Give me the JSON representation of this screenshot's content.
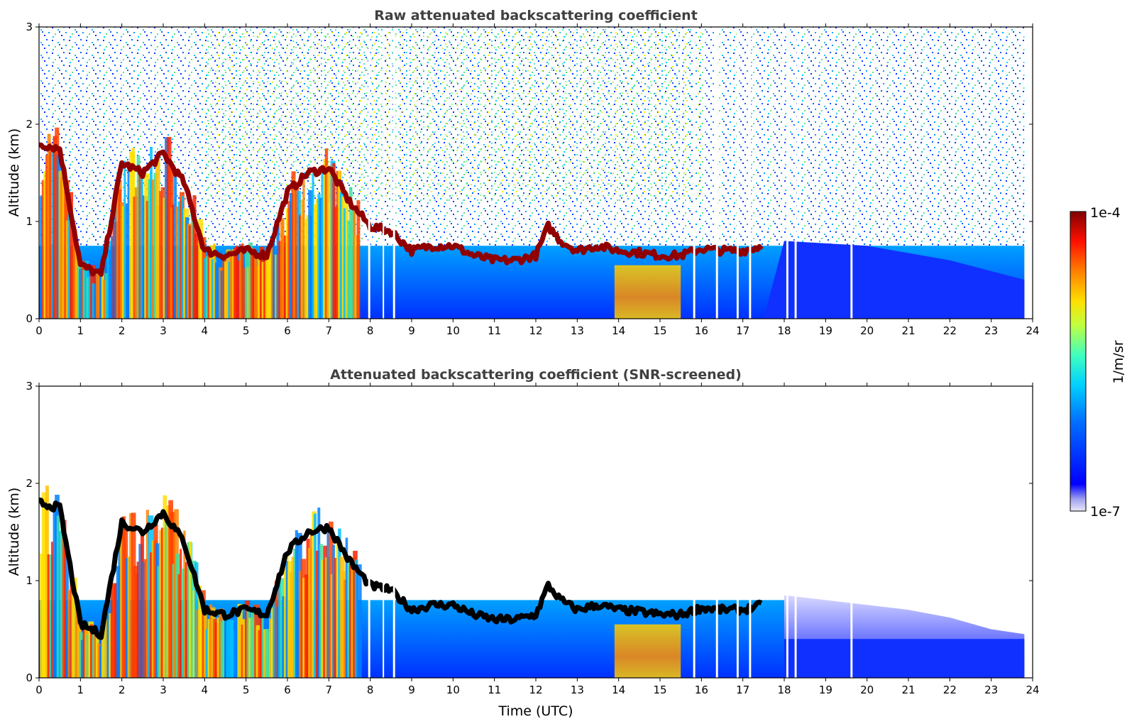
{
  "chart_data": [
    {
      "type": "heatmap",
      "title": "Raw attenuated backscattering coefficient",
      "xlabel": "",
      "ylabel": "Altitude (km)",
      "xlim": [
        0,
        24
      ],
      "ylim": [
        0,
        3
      ],
      "x_ticks": [
        "0",
        "1",
        "2",
        "3",
        "4",
        "5",
        "6",
        "7",
        "8",
        "9",
        "10",
        "11",
        "12",
        "13",
        "14",
        "15",
        "16",
        "17",
        "18",
        "19",
        "20",
        "21",
        "22",
        "23",
        "24"
      ],
      "y_ticks": [
        "0",
        "1",
        "2",
        "3"
      ],
      "data_end_hour": 23.8,
      "data_gaps_hours": [
        [
          7.95,
          8.0
        ],
        [
          8.3,
          8.33
        ],
        [
          8.55,
          8.6
        ],
        [
          15.8,
          15.85
        ],
        [
          16.35,
          16.4
        ],
        [
          16.85,
          16.9
        ],
        [
          17.15,
          17.2
        ],
        [
          18.05,
          18.1
        ],
        [
          18.25,
          18.3
        ],
        [
          19.6,
          19.65
        ]
      ],
      "boundary_layer_top_km": [
        {
          "x": 0,
          "y": 1.8
        },
        {
          "x": 0.5,
          "y": 1.75
        },
        {
          "x": 1,
          "y": 0.55
        },
        {
          "x": 1.5,
          "y": 0.45
        },
        {
          "x": 2,
          "y": 1.6
        },
        {
          "x": 2.5,
          "y": 1.5
        },
        {
          "x": 3,
          "y": 1.7
        },
        {
          "x": 3.5,
          "y": 1.4
        },
        {
          "x": 4,
          "y": 0.7
        },
        {
          "x": 4.5,
          "y": 0.65
        },
        {
          "x": 5,
          "y": 0.7
        },
        {
          "x": 5.5,
          "y": 0.65
        },
        {
          "x": 6,
          "y": 1.3
        },
        {
          "x": 6.5,
          "y": 1.5
        },
        {
          "x": 7,
          "y": 1.55
        },
        {
          "x": 7.5,
          "y": 1.2
        },
        {
          "x": 8,
          "y": 0.95
        },
        {
          "x": 8.5,
          "y": 0.9
        },
        {
          "x": 9,
          "y": 0.7
        },
        {
          "x": 9.5,
          "y": 0.75
        },
        {
          "x": 10,
          "y": 0.75
        },
        {
          "x": 10.5,
          "y": 0.65
        },
        {
          "x": 11,
          "y": 0.6
        },
        {
          "x": 11.5,
          "y": 0.6
        },
        {
          "x": 12,
          "y": 0.65
        },
        {
          "x": 12.3,
          "y": 0.95
        },
        {
          "x": 12.6,
          "y": 0.8
        },
        {
          "x": 13,
          "y": 0.7
        },
        {
          "x": 13.5,
          "y": 0.75
        },
        {
          "x": 14,
          "y": 0.7
        },
        {
          "x": 14.5,
          "y": 0.68
        },
        {
          "x": 15,
          "y": 0.65
        },
        {
          "x": 15.5,
          "y": 0.65
        },
        {
          "x": 16,
          "y": 0.72
        },
        {
          "x": 16.5,
          "y": 0.7
        },
        {
          "x": 17,
          "y": 0.7
        },
        {
          "x": 17.5,
          "y": 0.75
        }
      ]
    },
    {
      "type": "heatmap",
      "title": "Attenuated backscattering coefficient (SNR-screened)",
      "xlabel": "Time (UTC)",
      "ylabel": "Altitude (km)",
      "xlim": [
        0,
        24
      ],
      "ylim": [
        0,
        3
      ],
      "x_ticks": [
        "0",
        "1",
        "2",
        "3",
        "4",
        "5",
        "6",
        "7",
        "8",
        "9",
        "10",
        "11",
        "12",
        "13",
        "14",
        "15",
        "16",
        "17",
        "18",
        "19",
        "20",
        "21",
        "22",
        "23",
        "24"
      ],
      "y_ticks": [
        "0",
        "1",
        "2",
        "3"
      ],
      "data_end_hour": 23.8,
      "residual_layer_top_km": [
        {
          "x": 18,
          "y": 0.85
        },
        {
          "x": 19,
          "y": 0.8
        },
        {
          "x": 20,
          "y": 0.75
        },
        {
          "x": 21,
          "y": 0.7
        },
        {
          "x": 22,
          "y": 0.62
        },
        {
          "x": 23,
          "y": 0.5
        },
        {
          "x": 23.8,
          "y": 0.45
        }
      ]
    }
  ],
  "colorbar": {
    "label": "1/m/sr",
    "max_label": "1e-4",
    "min_label": "1e-7",
    "scale": "log",
    "colormap": "jet",
    "colors": [
      "#e8e8f8",
      "#9090f0",
      "#0000ff",
      "#0080ff",
      "#00d0ff",
      "#40ffc0",
      "#c0ff40",
      "#ffe000",
      "#ff8000",
      "#ff2000",
      "#800000"
    ]
  }
}
